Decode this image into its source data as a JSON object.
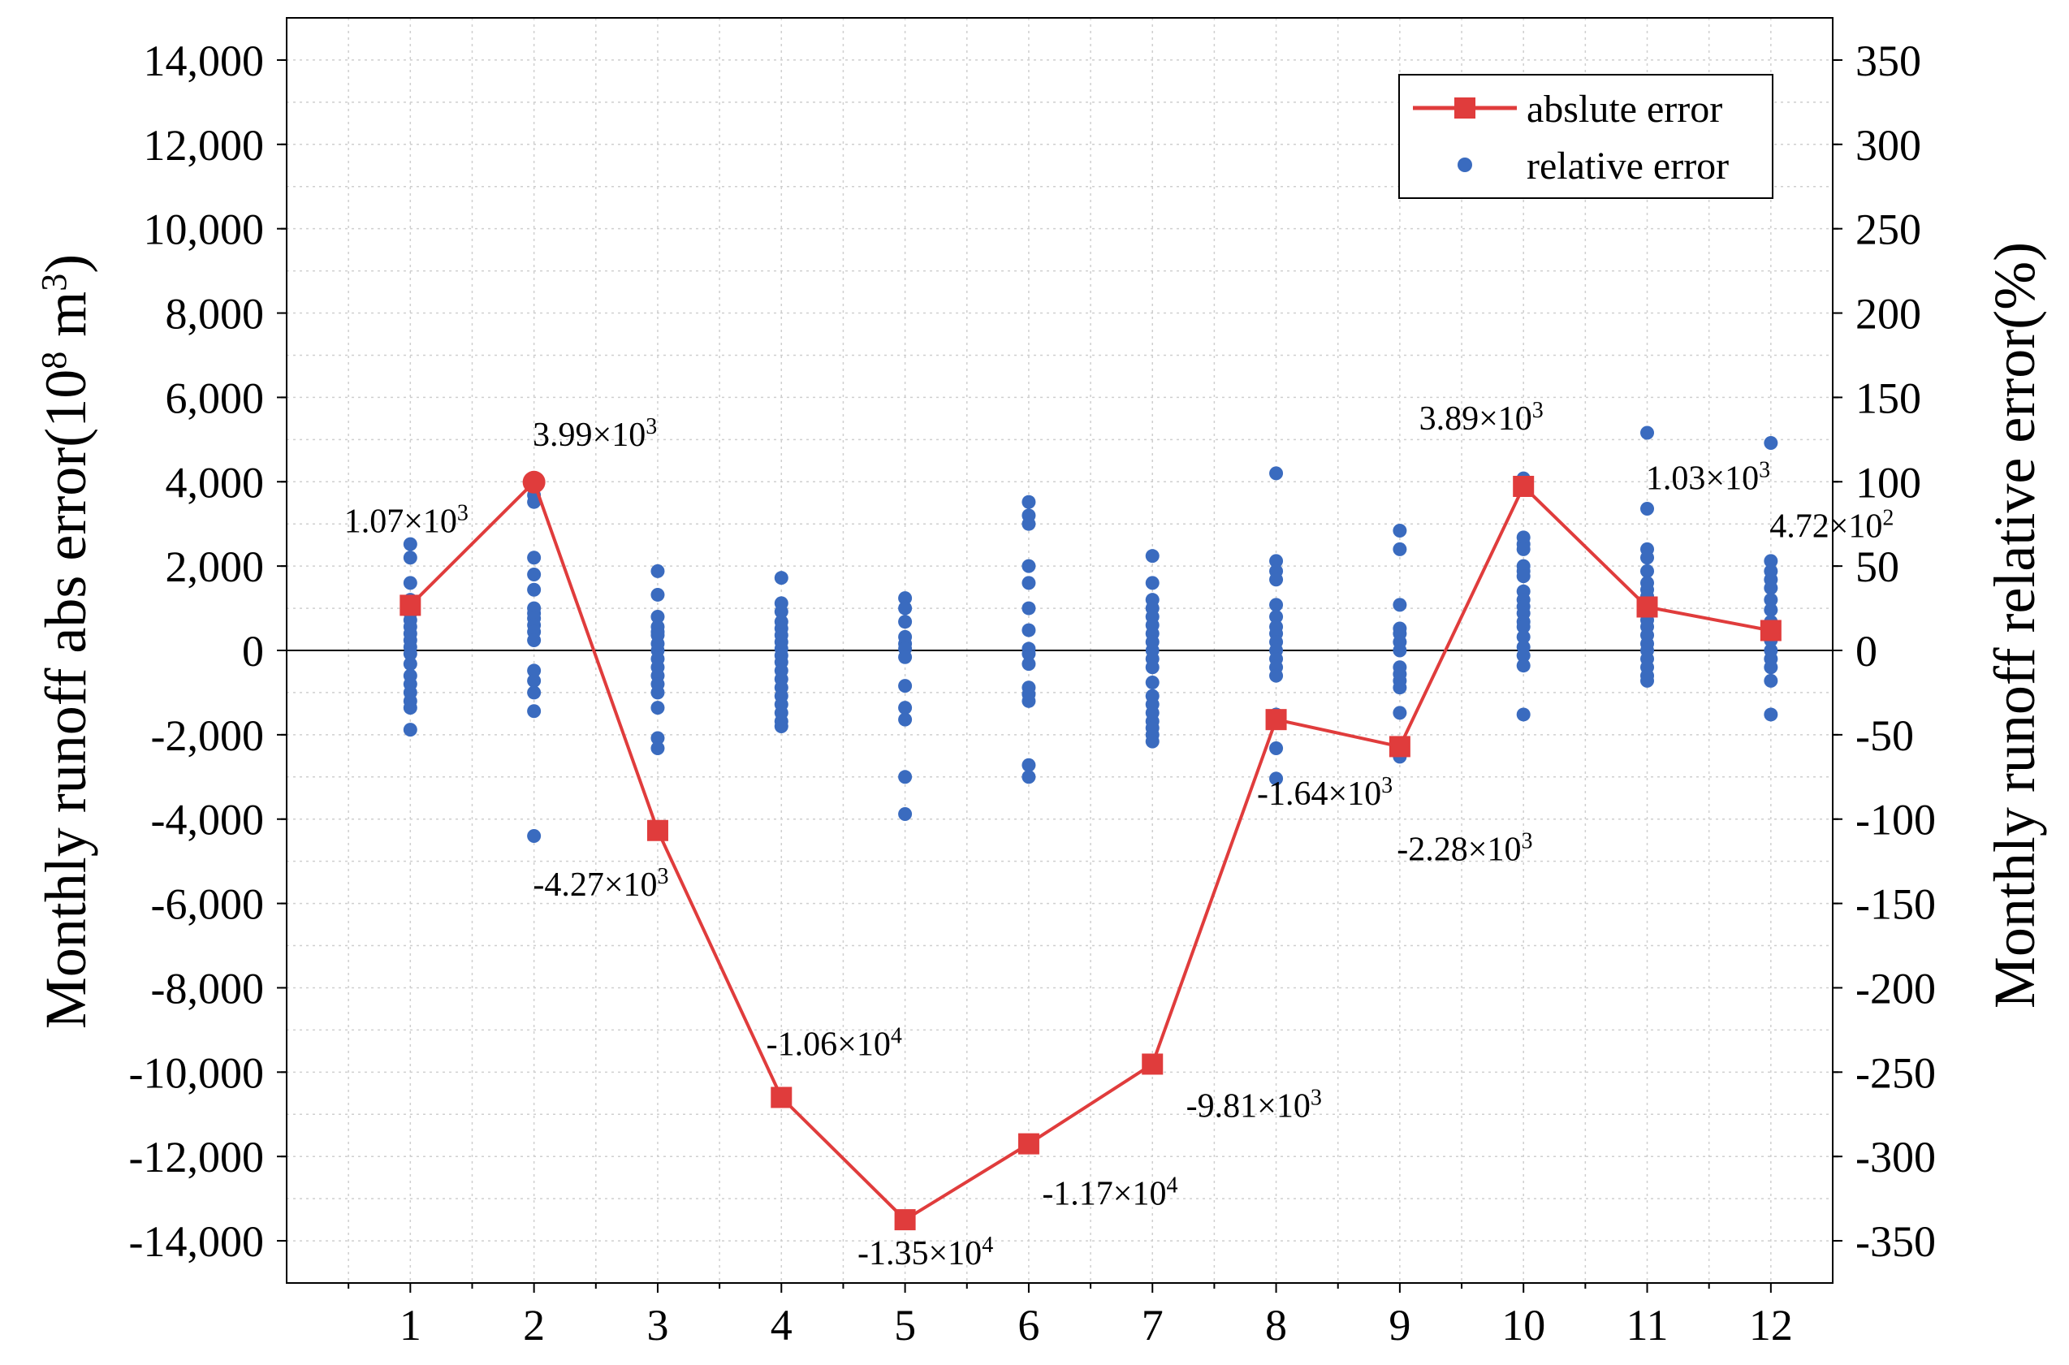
{
  "chart_data": {
    "type": "line+scatter",
    "x": [
      1,
      2,
      3,
      4,
      5,
      6,
      7,
      8,
      9,
      10,
      11,
      12
    ],
    "xlim": [
      0,
      12.5
    ],
    "xticks": [
      "1",
      "2",
      "3",
      "4",
      "5",
      "6",
      "7",
      "8",
      "9",
      "10",
      "11",
      "12"
    ],
    "ylabel_left": "Monthly runoff abs error(10",
    "ylabel_left_sup8": "8",
    "ylabel_left_mid": " m",
    "ylabel_left_sup3": "3",
    "ylabel_left_end": ")",
    "ylabel_right": "Monthly runoff relative error(%)",
    "ylim_left": [
      -15000,
      15000
    ],
    "ylim_right": [
      -375,
      375
    ],
    "yticks_left": [
      {
        "value": 14000,
        "label": "14,000"
      },
      {
        "value": 12000,
        "label": "12,000"
      },
      {
        "value": 10000,
        "label": "10,000"
      },
      {
        "value": 8000,
        "label": "8,000"
      },
      {
        "value": 6000,
        "label": "6,000"
      },
      {
        "value": 4000,
        "label": "4,000"
      },
      {
        "value": 2000,
        "label": "2,000"
      },
      {
        "value": 0,
        "label": "0"
      },
      {
        "value": -2000,
        "label": "-2,000"
      },
      {
        "value": -4000,
        "label": "-4,000"
      },
      {
        "value": -6000,
        "label": "-6,000"
      },
      {
        "value": -8000,
        "label": "-8,000"
      },
      {
        "value": -10000,
        "label": "-10,000"
      },
      {
        "value": -12000,
        "label": "-12,000"
      },
      {
        "value": -14000,
        "label": "-14,000"
      }
    ],
    "yticks_right": [
      {
        "value": 350,
        "label": "350"
      },
      {
        "value": 300,
        "label": "300"
      },
      {
        "value": 250,
        "label": "250"
      },
      {
        "value": 200,
        "label": "200"
      },
      {
        "value": 150,
        "label": "150"
      },
      {
        "value": 100,
        "label": "100"
      },
      {
        "value": 50,
        "label": "50"
      },
      {
        "value": 0,
        "label": "0"
      },
      {
        "value": -50,
        "label": "-50"
      },
      {
        "value": -100,
        "label": "-100"
      },
      {
        "value": -150,
        "label": "-150"
      },
      {
        "value": -200,
        "label": "-200"
      },
      {
        "value": -250,
        "label": "-250"
      },
      {
        "value": -300,
        "label": "-300"
      },
      {
        "value": -350,
        "label": "-350"
      }
    ],
    "grid": true,
    "legend": {
      "placement": "top-right",
      "entries": [
        {
          "name": "abslute error",
          "marker": "square-line",
          "color": "#e03c3c"
        },
        {
          "name": "relative error",
          "marker": "dot",
          "color": "#3a6bbf"
        }
      ]
    },
    "absolute_error": {
      "name": "abslute error",
      "color": "#e03c3c",
      "values": [
        1070,
        3990,
        -4270,
        -10600,
        -13500,
        -11700,
        -9810,
        -1640,
        -2280,
        3890,
        1030,
        472
      ]
    },
    "labels": [
      {
        "x": 1,
        "mant": "1.07×10",
        "exp": "3"
      },
      {
        "x": 2,
        "mant": "3.99×10",
        "exp": "3"
      },
      {
        "x": 3,
        "mant": "-4.27×10",
        "exp": "3"
      },
      {
        "x": 4,
        "mant": "-1.06×10",
        "exp": "4"
      },
      {
        "x": 5,
        "mant": "-1.35×10",
        "exp": "4"
      },
      {
        "x": 6,
        "mant": "-1.17×10",
        "exp": "4"
      },
      {
        "x": 7,
        "mant": "-9.81×10",
        "exp": "3"
      },
      {
        "x": 8,
        "mant": "-1.64×10",
        "exp": "3"
      },
      {
        "x": 9,
        "mant": "-2.28×10",
        "exp": "3"
      },
      {
        "x": 10,
        "mant": "3.89×10",
        "exp": "3"
      },
      {
        "x": 11,
        "mant": "1.03×10",
        "exp": "3"
      },
      {
        "x": 12,
        "mant": "4.72×10",
        "exp": "2"
      }
    ],
    "relative_error": {
      "name": "relative error",
      "color": "#3a6bbf",
      "points": [
        {
          "x": 1,
          "values": [
            63,
            55,
            40,
            30,
            27,
            22,
            18,
            14,
            10,
            6,
            2,
            -2,
            -8,
            -15,
            -20,
            -25,
            -30,
            -34,
            -47
          ]
        },
        {
          "x": 2,
          "values": [
            92,
            88,
            55,
            45,
            36,
            25,
            22,
            19,
            15,
            11,
            6,
            -12,
            -18,
            -25,
            -36,
            -110
          ]
        },
        {
          "x": 3,
          "values": [
            47,
            33,
            20,
            14,
            11,
            9,
            4,
            0,
            -5,
            -10,
            -15,
            -20,
            -25,
            -34,
            -52,
            -58
          ]
        },
        {
          "x": 4,
          "values": [
            43,
            28,
            23,
            17,
            13,
            9,
            5,
            1,
            -3,
            -7,
            -12,
            -17,
            -22,
            -27,
            -32,
            -37,
            -42,
            -45
          ]
        },
        {
          "x": 5,
          "values": [
            31,
            25,
            17,
            8,
            4,
            1,
            -4,
            -21,
            -34,
            -41,
            -75,
            -97
          ]
        },
        {
          "x": 6,
          "values": [
            88,
            80,
            75,
            50,
            40,
            25,
            12,
            1,
            -2,
            -8,
            -22,
            -26,
            -30,
            -68,
            -75
          ]
        },
        {
          "x": 7,
          "values": [
            56,
            40,
            30,
            25,
            20,
            15,
            10,
            5,
            0,
            -5,
            -10,
            -19,
            -27,
            -32,
            -37,
            -42,
            -46,
            -50,
            -54
          ]
        },
        {
          "x": 8,
          "values": [
            105,
            53,
            47,
            42,
            27,
            20,
            14,
            10,
            5,
            0,
            -5,
            -10,
            -15,
            -38,
            -58,
            -76
          ]
        },
        {
          "x": 9,
          "values": [
            71,
            60,
            27,
            13,
            10,
            5,
            0,
            -10,
            -14,
            -18,
            -22,
            -37,
            -60,
            -63
          ]
        },
        {
          "x": 10,
          "values": [
            102,
            98,
            67,
            63,
            60,
            50,
            47,
            44,
            35,
            30,
            26,
            22,
            17,
            14,
            8,
            2,
            -3,
            -9,
            -38
          ]
        },
        {
          "x": 11,
          "values": [
            129,
            84,
            60,
            55,
            47,
            40,
            36,
            32,
            28,
            23,
            18,
            14,
            9,
            4,
            0,
            -5,
            -10,
            -15,
            -18
          ]
        },
        {
          "x": 12,
          "values": [
            123,
            53,
            47,
            42,
            37,
            30,
            24,
            17,
            11,
            6,
            0,
            -5,
            -10,
            -18,
            -38
          ]
        }
      ]
    }
  }
}
